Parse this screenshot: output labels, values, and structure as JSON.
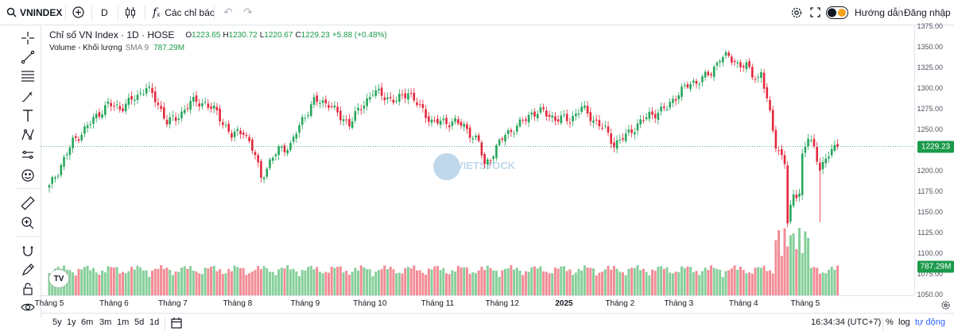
{
  "topbar": {
    "symbol": "VNINDEX",
    "interval": "D",
    "indicators_label": "Các chỉ báo",
    "guide_label": "Hướng dẫn",
    "login_label": "Đăng nhập"
  },
  "legend": {
    "title": "Chỉ số VN Index · 1D · HOSE",
    "open_label": "O",
    "open": "1223.65",
    "high_label": "H",
    "high": "1230.72",
    "low_label": "L",
    "low": "1220.67",
    "close_label": "C",
    "close": "1229.23",
    "change": "+5.88 (+0.48%)",
    "volume_label": "Volume - Khối lượng",
    "sma_label": "SMA 9",
    "volume_value": "787.29M"
  },
  "watermark": "VIETSTOCK",
  "time_display": "16:34:34 (UTC+7)",
  "ranges": [
    "5y",
    "1y",
    "6m",
    "3m",
    "1m",
    "5d",
    "1d"
  ],
  "scale_options": {
    "percent": "%",
    "log": "log",
    "auto": "tự động"
  },
  "colors": {
    "up": "#26a65b",
    "down": "#e5283c",
    "up_volume": "#86cf9a",
    "down_volume": "#f28c96",
    "badge": "#1b9a4a"
  },
  "chart_data": {
    "type": "candlestick",
    "title": "Chỉ số VN Index · 1D · HOSE",
    "ylim": [
      1050,
      1375
    ],
    "y_ticks": [
      1375,
      1350,
      1325,
      1300,
      1275,
      1250,
      1225,
      1200,
      1175,
      1150,
      1125,
      1100,
      1075,
      1050
    ],
    "last_price": 1229.23,
    "last_volume_label": "787.29M",
    "x_tick_labels": [
      "Tháng 5",
      "Tháng 6",
      "Tháng 7",
      "Tháng 8",
      "Tháng 9",
      "Tháng 10",
      "Tháng 11",
      "Tháng 12",
      "2025",
      "Tháng 2",
      "Tháng 3",
      "Tháng 4",
      "Tháng 5"
    ],
    "x_tick_bar_index": [
      0,
      22,
      42,
      64,
      87,
      109,
      132,
      154,
      175,
      194,
      214,
      236,
      257
    ],
    "price_anchors": [
      [
        0,
        1180
      ],
      [
        3,
        1200
      ],
      [
        8,
        1235
      ],
      [
        12,
        1250
      ],
      [
        17,
        1270
      ],
      [
        20,
        1280
      ],
      [
        24,
        1276
      ],
      [
        30,
        1290
      ],
      [
        33,
        1302
      ],
      [
        37,
        1280
      ],
      [
        40,
        1260
      ],
      [
        43,
        1262
      ],
      [
        48,
        1283
      ],
      [
        53,
        1282
      ],
      [
        57,
        1270
      ],
      [
        62,
        1242
      ],
      [
        66,
        1249
      ],
      [
        70,
        1218
      ],
      [
        72,
        1192
      ],
      [
        75,
        1210
      ],
      [
        78,
        1226
      ],
      [
        82,
        1230
      ],
      [
        86,
        1262
      ],
      [
        90,
        1284
      ],
      [
        95,
        1282
      ],
      [
        99,
        1264
      ],
      [
        102,
        1258
      ],
      [
        106,
        1276
      ],
      [
        110,
        1296
      ],
      [
        114,
        1290
      ],
      [
        118,
        1284
      ],
      [
        122,
        1296
      ],
      [
        126,
        1276
      ],
      [
        130,
        1260
      ],
      [
        134,
        1258
      ],
      [
        138,
        1260
      ],
      [
        142,
        1250
      ],
      [
        146,
        1234
      ],
      [
        148,
        1206
      ],
      [
        151,
        1222
      ],
      [
        155,
        1244
      ],
      [
        160,
        1256
      ],
      [
        164,
        1270
      ],
      [
        168,
        1271
      ],
      [
        172,
        1263
      ],
      [
        177,
        1262
      ],
      [
        181,
        1276
      ],
      [
        185,
        1262
      ],
      [
        189,
        1249
      ],
      [
        192,
        1232
      ],
      [
        196,
        1242
      ],
      [
        200,
        1256
      ],
      [
        204,
        1267
      ],
      [
        210,
        1276
      ],
      [
        214,
        1295
      ],
      [
        218,
        1305
      ],
      [
        222,
        1312
      ],
      [
        225,
        1318
      ],
      [
        228,
        1338
      ],
      [
        231,
        1337
      ],
      [
        234,
        1330
      ],
      [
        237,
        1326
      ],
      [
        239,
        1316
      ],
      [
        241,
        1312
      ],
      [
        242,
        1320
      ],
      [
        247,
        1232
      ],
      [
        250,
        1210
      ],
      [
        251,
        1136
      ],
      [
        253,
        1170
      ],
      [
        255,
        1175
      ],
      [
        256,
        1218
      ],
      [
        258,
        1240
      ],
      [
        260,
        1226
      ],
      [
        262,
        1205
      ],
      [
        264,
        1212
      ],
      [
        266,
        1225
      ],
      [
        268,
        1229
      ]
    ],
    "volume_note": "daily volume bars with SMA 9 line; last volume 787.29M"
  }
}
